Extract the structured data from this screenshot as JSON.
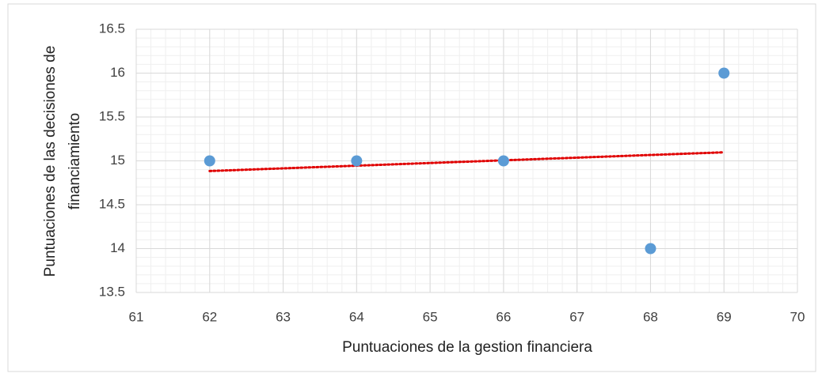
{
  "chart_data": {
    "type": "scatter",
    "xlabel": "Puntuaciones de la gestion financiera",
    "ylabel": [
      "Puntuaciones de las decisiones de",
      "financiamiento"
    ],
    "series": [
      {
        "color": "#5b9bd5",
        "x": [
          62,
          64,
          66,
          68,
          69
        ],
        "values": [
          15,
          15,
          15,
          14,
          16
        ]
      }
    ],
    "trendline": {
      "kind": "linear",
      "color": "#e00000"
    },
    "xlim": [
      61,
      70
    ],
    "xticks": [
      61,
      62,
      63,
      64,
      65,
      66,
      67,
      68,
      69,
      70
    ],
    "ylim": [
      13.5,
      16.5
    ],
    "yticks": [
      13.5,
      14,
      14.5,
      15,
      15.5,
      16,
      16.5
    ],
    "grid": true,
    "xminor": 0.2,
    "yminor": 0.1
  }
}
